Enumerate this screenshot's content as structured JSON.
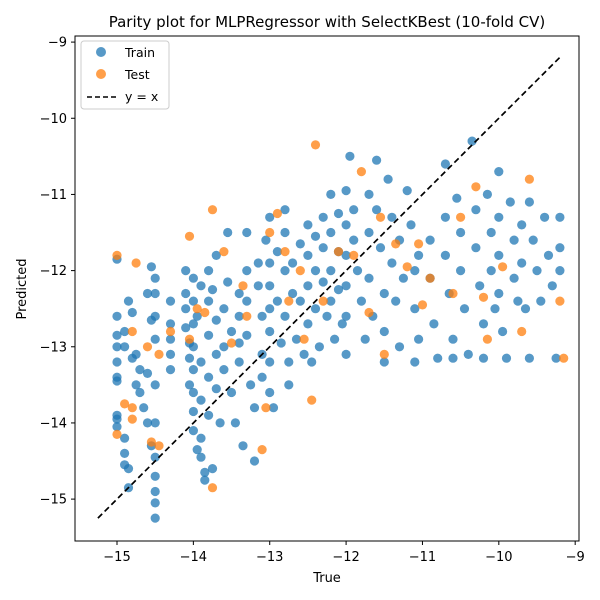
{
  "chart_data": {
    "type": "scatter",
    "title": "Parity plot for MLPRegressor with SelectKBest (10-fold CV)",
    "xlabel": "True",
    "ylabel": "Predicted",
    "xlim": [
      -15.55,
      -8.95
    ],
    "ylim": [
      -15.55,
      -8.92
    ],
    "xticks": [
      -15,
      -14,
      -13,
      -12,
      -11,
      -10,
      -9
    ],
    "yticks": [
      -15,
      -14,
      -13,
      -12,
      -11,
      -10,
      -9
    ],
    "xtick_labels": [
      "−15",
      "−14",
      "−13",
      "−12",
      "−11",
      "−10",
      "−9"
    ],
    "ytick_labels": [
      "−15",
      "−14",
      "−13",
      "−12",
      "−11",
      "−10",
      "−9"
    ],
    "grid": false,
    "legend_position": "top-left",
    "series": [
      {
        "name": "Train",
        "color": "#1f77b4",
        "points": [
          [
            -15.0,
            -11.85
          ],
          [
            -15.0,
            -12.6
          ],
          [
            -15.0,
            -12.85
          ],
          [
            -15.0,
            -13.0
          ],
          [
            -15.0,
            -13.2
          ],
          [
            -15.0,
            -13.4
          ],
          [
            -15.0,
            -13.45
          ],
          [
            -15.0,
            -13.9
          ],
          [
            -15.0,
            -13.95
          ],
          [
            -15.0,
            -14.05
          ],
          [
            -14.9,
            -14.2
          ],
          [
            -14.9,
            -14.4
          ],
          [
            -14.9,
            -14.55
          ],
          [
            -14.9,
            -13.0
          ],
          [
            -14.9,
            -12.8
          ],
          [
            -14.85,
            -14.85
          ],
          [
            -14.85,
            -14.6
          ],
          [
            -14.85,
            -12.4
          ],
          [
            -14.8,
            -12.55
          ],
          [
            -14.8,
            -13.15
          ],
          [
            -14.75,
            -13.1
          ],
          [
            -14.75,
            -13.5
          ],
          [
            -14.7,
            -13.3
          ],
          [
            -14.7,
            -13.6
          ],
          [
            -14.65,
            -13.8
          ],
          [
            -14.6,
            -13.35
          ],
          [
            -14.6,
            -14.0
          ],
          [
            -14.6,
            -12.3
          ],
          [
            -14.55,
            -12.65
          ],
          [
            -14.55,
            -14.3
          ],
          [
            -14.5,
            -14.7
          ],
          [
            -14.5,
            -14.9
          ],
          [
            -14.5,
            -15.05
          ],
          [
            -14.5,
            -15.25
          ],
          [
            -14.5,
            -14.45
          ],
          [
            -14.5,
            -14.0
          ],
          [
            -14.5,
            -13.5
          ],
          [
            -14.5,
            -12.9
          ],
          [
            -14.5,
            -12.6
          ],
          [
            -14.5,
            -12.3
          ],
          [
            -14.5,
            -12.1
          ],
          [
            -14.55,
            -11.95
          ],
          [
            -14.3,
            -12.4
          ],
          [
            -14.3,
            -12.7
          ],
          [
            -14.3,
            -12.9
          ],
          [
            -14.3,
            -13.1
          ],
          [
            -14.3,
            -13.3
          ],
          [
            -14.1,
            -12.0
          ],
          [
            -14.1,
            -12.3
          ],
          [
            -14.1,
            -12.5
          ],
          [
            -14.1,
            -12.75
          ],
          [
            -14.05,
            -12.95
          ],
          [
            -14.05,
            -13.15
          ],
          [
            -14.05,
            -13.5
          ],
          [
            -14.0,
            -12.1
          ],
          [
            -14.0,
            -12.4
          ],
          [
            -14.0,
            -12.7
          ],
          [
            -14.0,
            -13.0
          ],
          [
            -14.0,
            -13.3
          ],
          [
            -14.0,
            -13.6
          ],
          [
            -14.0,
            -13.85
          ],
          [
            -14.0,
            -14.1
          ],
          [
            -13.95,
            -14.35
          ],
          [
            -13.95,
            -12.6
          ],
          [
            -13.9,
            -12.2
          ],
          [
            -13.9,
            -13.2
          ],
          [
            -13.9,
            -13.7
          ],
          [
            -13.9,
            -14.2
          ],
          [
            -13.9,
            -14.45
          ],
          [
            -13.85,
            -14.65
          ],
          [
            -13.85,
            -14.75
          ],
          [
            -13.8,
            -12.0
          ],
          [
            -13.8,
            -12.4
          ],
          [
            -13.8,
            -12.85
          ],
          [
            -13.8,
            -13.4
          ],
          [
            -13.8,
            -13.9
          ],
          [
            -13.75,
            -14.6
          ],
          [
            -13.75,
            -12.25
          ],
          [
            -13.7,
            -11.8
          ],
          [
            -13.7,
            -12.65
          ],
          [
            -13.7,
            -13.1
          ],
          [
            -13.7,
            -13.55
          ],
          [
            -13.65,
            -14.0
          ],
          [
            -13.6,
            -12.5
          ],
          [
            -13.6,
            -13.0
          ],
          [
            -13.6,
            -13.3
          ],
          [
            -13.55,
            -11.5
          ],
          [
            -13.55,
            -12.15
          ],
          [
            -13.5,
            -12.8
          ],
          [
            -13.5,
            -13.6
          ],
          [
            -13.45,
            -14.0
          ],
          [
            -13.4,
            -12.3
          ],
          [
            -13.4,
            -12.6
          ],
          [
            -13.4,
            -12.95
          ],
          [
            -13.4,
            -13.2
          ],
          [
            -13.35,
            -14.3
          ],
          [
            -13.3,
            -11.5
          ],
          [
            -13.3,
            -12.0
          ],
          [
            -13.3,
            -12.4
          ],
          [
            -13.3,
            -12.85
          ],
          [
            -13.25,
            -13.5
          ],
          [
            -13.2,
            -13.8
          ],
          [
            -13.2,
            -14.5
          ],
          [
            -13.15,
            -11.9
          ],
          [
            -13.15,
            -12.2
          ],
          [
            -13.1,
            -12.6
          ],
          [
            -13.1,
            -13.1
          ],
          [
            -13.1,
            -13.4
          ],
          [
            -13.05,
            -11.6
          ],
          [
            -13.0,
            -11.3
          ],
          [
            -13.0,
            -11.9
          ],
          [
            -13.0,
            -12.2
          ],
          [
            -13.0,
            -12.5
          ],
          [
            -13.0,
            -12.8
          ],
          [
            -13.0,
            -13.2
          ],
          [
            -13.0,
            -13.6
          ],
          [
            -12.95,
            -13.8
          ],
          [
            -12.9,
            -11.75
          ],
          [
            -12.9,
            -12.4
          ],
          [
            -12.85,
            -12.95
          ],
          [
            -12.8,
            -11.2
          ],
          [
            -12.8,
            -11.5
          ],
          [
            -12.8,
            -12.0
          ],
          [
            -12.8,
            -12.6
          ],
          [
            -12.75,
            -13.2
          ],
          [
            -12.75,
            -13.5
          ],
          [
            -12.7,
            -11.9
          ],
          [
            -12.7,
            -12.3
          ],
          [
            -12.65,
            -12.9
          ],
          [
            -12.6,
            -11.65
          ],
          [
            -12.6,
            -12.4
          ],
          [
            -12.55,
            -13.1
          ],
          [
            -12.5,
            -11.4
          ],
          [
            -12.5,
            -11.8
          ],
          [
            -12.5,
            -12.2
          ],
          [
            -12.5,
            -12.7
          ],
          [
            -12.45,
            -13.2
          ],
          [
            -12.4,
            -11.55
          ],
          [
            -12.4,
            -12.0
          ],
          [
            -12.4,
            -12.5
          ],
          [
            -12.35,
            -13.0
          ],
          [
            -12.3,
            -11.3
          ],
          [
            -12.3,
            -11.7
          ],
          [
            -12.3,
            -12.15
          ],
          [
            -12.25,
            -12.6
          ],
          [
            -12.2,
            -11.0
          ],
          [
            -12.2,
            -11.5
          ],
          [
            -12.2,
            -12.0
          ],
          [
            -12.2,
            -12.4
          ],
          [
            -12.15,
            -12.9
          ],
          [
            -12.1,
            -11.25
          ],
          [
            -12.1,
            -11.75
          ],
          [
            -12.1,
            -12.25
          ],
          [
            -12.05,
            -12.7
          ],
          [
            -12.0,
            -10.95
          ],
          [
            -12.0,
            -11.4
          ],
          [
            -12.0,
            -11.8
          ],
          [
            -12.0,
            -12.2
          ],
          [
            -12.0,
            -12.6
          ],
          [
            -12.0,
            -13.1
          ],
          [
            -11.95,
            -10.5
          ],
          [
            -11.9,
            -11.2
          ],
          [
            -11.9,
            -11.6
          ],
          [
            -11.85,
            -12.0
          ],
          [
            -11.8,
            -12.4
          ],
          [
            -11.75,
            -12.9
          ],
          [
            -11.7,
            -11.0
          ],
          [
            -11.7,
            -11.5
          ],
          [
            -11.7,
            -12.1
          ],
          [
            -11.65,
            -12.6
          ],
          [
            -11.6,
            -10.55
          ],
          [
            -11.6,
            -11.2
          ],
          [
            -11.55,
            -11.7
          ],
          [
            -11.5,
            -12.3
          ],
          [
            -11.5,
            -12.8
          ],
          [
            -11.5,
            -13.2
          ],
          [
            -11.45,
            -10.8
          ],
          [
            -11.4,
            -11.3
          ],
          [
            -11.4,
            -11.9
          ],
          [
            -11.35,
            -12.4
          ],
          [
            -11.3,
            -13.0
          ],
          [
            -11.3,
            -11.6
          ],
          [
            -11.25,
            -12.1
          ],
          [
            -11.2,
            -10.95
          ],
          [
            -11.15,
            -11.4
          ],
          [
            -11.1,
            -12.0
          ],
          [
            -11.1,
            -12.5
          ],
          [
            -11.1,
            -13.2
          ],
          [
            -11.05,
            -11.8
          ],
          [
            -11.05,
            -12.9
          ],
          [
            -10.9,
            -11.6
          ],
          [
            -10.9,
            -12.1
          ],
          [
            -10.85,
            -12.7
          ],
          [
            -10.8,
            -13.15
          ],
          [
            -10.7,
            -10.6
          ],
          [
            -10.7,
            -11.3
          ],
          [
            -10.7,
            -11.8
          ],
          [
            -10.65,
            -12.3
          ],
          [
            -10.6,
            -12.9
          ],
          [
            -10.6,
            -13.15
          ],
          [
            -10.55,
            -11.05
          ],
          [
            -10.5,
            -11.5
          ],
          [
            -10.5,
            -12.0
          ],
          [
            -10.45,
            -12.5
          ],
          [
            -10.4,
            -13.1
          ],
          [
            -10.35,
            -10.3
          ],
          [
            -10.3,
            -11.2
          ],
          [
            -10.3,
            -11.7
          ],
          [
            -10.25,
            -12.2
          ],
          [
            -10.2,
            -12.7
          ],
          [
            -10.2,
            -13.15
          ],
          [
            -10.15,
            -11.0
          ],
          [
            -10.1,
            -11.5
          ],
          [
            -10.1,
            -12.0
          ],
          [
            -10.05,
            -12.5
          ],
          [
            -10.0,
            -10.7
          ],
          [
            -10.0,
            -11.3
          ],
          [
            -10.0,
            -11.8
          ],
          [
            -10.0,
            -12.3
          ],
          [
            -9.95,
            -12.8
          ],
          [
            -9.9,
            -13.15
          ],
          [
            -9.85,
            -11.1
          ],
          [
            -9.8,
            -11.6
          ],
          [
            -9.8,
            -12.1
          ],
          [
            -9.75,
            -12.4
          ],
          [
            -9.7,
            -11.4
          ],
          [
            -9.7,
            -11.9
          ],
          [
            -9.65,
            -12.5
          ],
          [
            -9.6,
            -11.1
          ],
          [
            -9.6,
            -13.15
          ],
          [
            -9.55,
            -11.6
          ],
          [
            -9.5,
            -12.0
          ],
          [
            -9.45,
            -12.4
          ],
          [
            -9.4,
            -11.3
          ],
          [
            -9.35,
            -11.8
          ],
          [
            -9.3,
            -12.2
          ],
          [
            -9.25,
            -13.15
          ],
          [
            -9.2,
            -11.3
          ],
          [
            -9.2,
            -11.7
          ],
          [
            -9.2,
            -12.0
          ]
        ]
      },
      {
        "name": "Test",
        "color": "#ff7f0e",
        "points": [
          [
            -15.0,
            -11.8
          ],
          [
            -15.0,
            -14.15
          ],
          [
            -14.9,
            -13.75
          ],
          [
            -14.8,
            -13.8
          ],
          [
            -14.8,
            -12.8
          ],
          [
            -14.8,
            -13.95
          ],
          [
            -14.75,
            -11.9
          ],
          [
            -14.6,
            -13.0
          ],
          [
            -14.55,
            -14.25
          ],
          [
            -14.45,
            -13.1
          ],
          [
            -14.45,
            -14.3
          ],
          [
            -14.3,
            -12.8
          ],
          [
            -14.05,
            -12.9
          ],
          [
            -14.05,
            -11.55
          ],
          [
            -13.95,
            -12.5
          ],
          [
            -13.85,
            -12.55
          ],
          [
            -13.75,
            -11.2
          ],
          [
            -13.75,
            -14.85
          ],
          [
            -13.6,
            -11.75
          ],
          [
            -13.5,
            -12.95
          ],
          [
            -13.35,
            -12.2
          ],
          [
            -13.3,
            -12.6
          ],
          [
            -13.1,
            -14.35
          ],
          [
            -13.05,
            -13.8
          ],
          [
            -13.0,
            -11.5
          ],
          [
            -12.9,
            -11.25
          ],
          [
            -12.8,
            -11.75
          ],
          [
            -12.75,
            -12.4
          ],
          [
            -12.6,
            -12.0
          ],
          [
            -12.55,
            -12.9
          ],
          [
            -12.45,
            -13.7
          ],
          [
            -12.4,
            -10.35
          ],
          [
            -12.3,
            -12.4
          ],
          [
            -12.1,
            -11.75
          ],
          [
            -11.9,
            -11.8
          ],
          [
            -11.8,
            -10.7
          ],
          [
            -11.7,
            -12.55
          ],
          [
            -11.55,
            -11.3
          ],
          [
            -11.5,
            -13.1
          ],
          [
            -11.35,
            -11.65
          ],
          [
            -11.2,
            -11.95
          ],
          [
            -11.05,
            -11.65
          ],
          [
            -11.0,
            -12.45
          ],
          [
            -10.9,
            -12.1
          ],
          [
            -10.6,
            -12.3
          ],
          [
            -10.5,
            -11.3
          ],
          [
            -10.3,
            -10.9
          ],
          [
            -10.2,
            -12.35
          ],
          [
            -10.15,
            -12.9
          ],
          [
            -9.95,
            -11.95
          ],
          [
            -9.7,
            -12.8
          ],
          [
            -9.6,
            -10.8
          ],
          [
            -9.2,
            -12.4
          ],
          [
            -9.15,
            -13.15
          ]
        ]
      }
    ],
    "reference_line": {
      "name": "y = x",
      "color": "#000000",
      "style": "dashed",
      "from": [
        -15.25,
        -15.25
      ],
      "to": [
        -9.2,
        -9.2
      ]
    }
  }
}
